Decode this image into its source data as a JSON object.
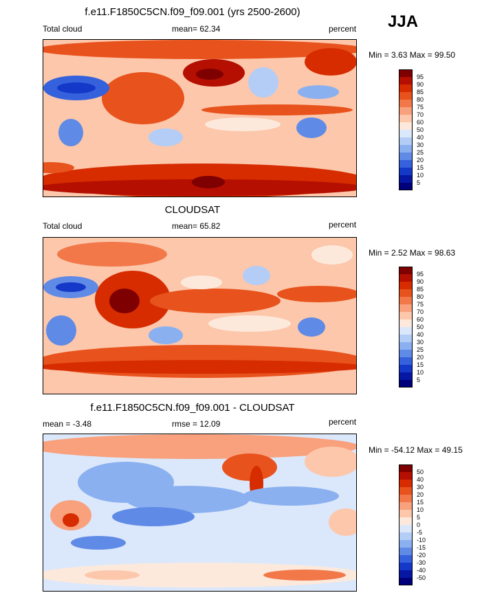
{
  "season": "JJA",
  "panels": [
    {
      "title": "f.e11.F1850C5CN.f09_f09.001 (yrs 2500-2600)",
      "left_label": "Total cloud",
      "center_label": "mean=  62.34",
      "right_label": "percent",
      "minmax": "Min =   3.63 Max =  99.50",
      "colorbar_levels": [
        "95",
        "90",
        "85",
        "80",
        "75",
        "70",
        "60",
        "50",
        "40",
        "30",
        "25",
        "20",
        "15",
        "10",
        "5"
      ],
      "colorbar_colors": [
        "#7f0000",
        "#b40f00",
        "#d62c00",
        "#e8521c",
        "#f2784a",
        "#f9a07c",
        "#fcc7ab",
        "#fde9dc",
        "#dbe8fb",
        "#b3cdf6",
        "#8bb0f0",
        "#5f8ae6",
        "#3561dc",
        "#1438c8",
        "#0617a3",
        "#00007a"
      ]
    },
    {
      "title": "CLOUDSAT",
      "left_label": "Total cloud",
      "center_label": "mean=  65.82",
      "right_label": "percent",
      "minmax": "Min =   2.52 Max =  98.63",
      "colorbar_levels": [
        "95",
        "90",
        "85",
        "80",
        "75",
        "70",
        "60",
        "50",
        "40",
        "30",
        "25",
        "20",
        "15",
        "10",
        "5"
      ],
      "colorbar_colors": [
        "#7f0000",
        "#b40f00",
        "#d62c00",
        "#e8521c",
        "#f2784a",
        "#f9a07c",
        "#fcc7ab",
        "#fde9dc",
        "#dbe8fb",
        "#b3cdf6",
        "#8bb0f0",
        "#5f8ae6",
        "#3561dc",
        "#1438c8",
        "#0617a3",
        "#00007a"
      ]
    },
    {
      "title": "f.e11.F1850C5CN.f09_f09.001 - CLOUDSAT",
      "left_label": "mean =  -3.48",
      "center_label": "rmse =  12.09",
      "right_label": "percent",
      "minmax": "Min = -54.12 Max =  49.15",
      "colorbar_levels": [
        "50",
        "40",
        "30",
        "20",
        "15",
        "10",
        "5",
        "0",
        "-5",
        "-10",
        "-15",
        "-20",
        "-30",
        "-40",
        "-50"
      ],
      "colorbar_colors": [
        "#7f0000",
        "#b40f00",
        "#d62c00",
        "#e8521c",
        "#f2784a",
        "#f9a07c",
        "#fcc7ab",
        "#fde9dc",
        "#dbe8fb",
        "#b3cdf6",
        "#8bb0f0",
        "#5f8ae6",
        "#3561dc",
        "#1438c8",
        "#0617a3",
        "#00007a"
      ]
    }
  ]
}
